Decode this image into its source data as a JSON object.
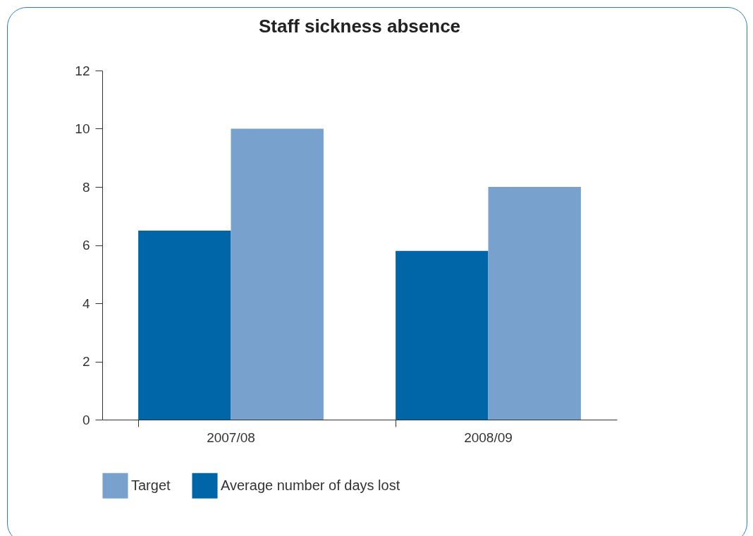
{
  "chart_data": {
    "type": "bar",
    "title": "Staff sickness absence",
    "categories": [
      "2007/08",
      "2008/09"
    ],
    "series": [
      {
        "name": "Average number of days lost",
        "color": "#0066a8",
        "values": [
          6.5,
          5.8
        ]
      },
      {
        "name": "Target",
        "color": "#79a1ce",
        "values": [
          10,
          8
        ]
      }
    ],
    "ylim": [
      0,
      12
    ],
    "yticks": [
      0,
      2,
      4,
      6,
      8,
      10,
      12
    ],
    "grid": false,
    "legend": "bottom"
  }
}
